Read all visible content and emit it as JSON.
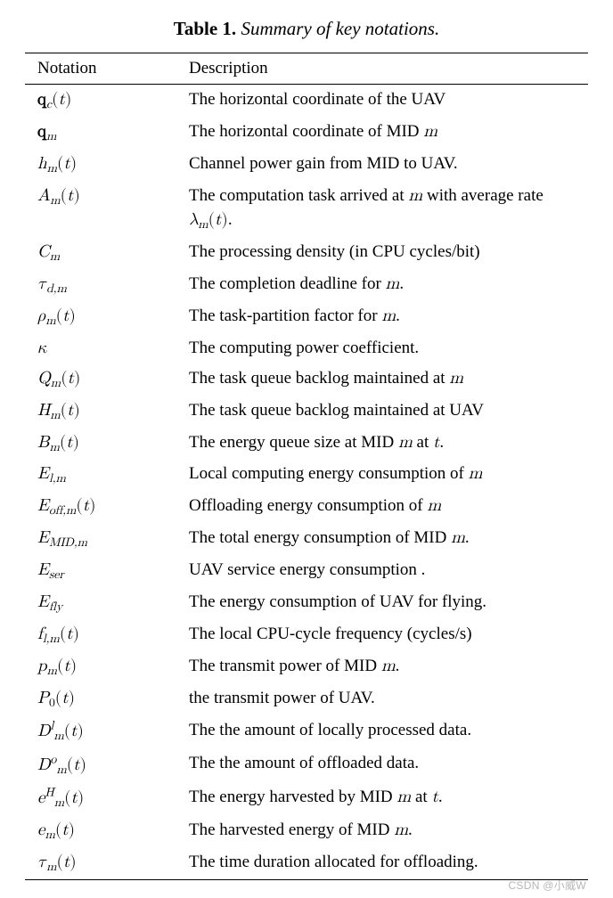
{
  "caption": {
    "label": "Table 1.",
    "title": "Summary of key notations."
  },
  "headers": {
    "notation": "Notation",
    "description": "Description"
  },
  "rows": [
    {
      "n": "<span class='bold-math'>q</span><sub>c</sub><span class='rm'>(</span>t<span class='rm'>)</span>",
      "d": "The horizontal coordinate of the UAV"
    },
    {
      "n": "<span class='bold-math'>q</span><sub>m</sub>",
      "d": "The horizontal coordinate of MID <span class='math'>m</span>"
    },
    {
      "n": "h<sub>m</sub><span class='rm'>(</span>t<span class='rm'>)</span>",
      "d": "Channel power gain from MID to UAV."
    },
    {
      "n": "A<sub>m</sub><span class='rm'>(</span>t<span class='rm'>)</span>",
      "d": "The computation task arrived at <span class='math'>m</span> with average rate <span class='math'>λ<sub>m</sub><span class='rm'>(</span>t<span class='rm'>)</span></span>."
    },
    {
      "n": "C<sub>m</sub>",
      "d": "The processing density (in CPU cycles/bit)"
    },
    {
      "n": "τ<sub>d,m</sub>",
      "d": "The completion deadline for <span class='math'>m</span>."
    },
    {
      "n": "ρ<sub>m</sub><span class='rm'>(</span>t<span class='rm'>)</span>",
      "d": "The task-partition factor for <span class='math'>m</span>."
    },
    {
      "n": "κ",
      "d": "The computing power coefficient."
    },
    {
      "n": "Q<sub>m</sub><span class='rm'>(</span>t<span class='rm'>)</span>",
      "d": "The task queue backlog maintained at <span class='math'>m</span>"
    },
    {
      "n": "H<sub>m</sub><span class='rm'>(</span>t<span class='rm'>)</span>",
      "d": "The task queue backlog maintained at UAV"
    },
    {
      "n": "B<sub>m</sub><span class='rm'>(</span>t<span class='rm'>)</span>",
      "d": "The energy queue size at MID <span class='math'>m</span> at <span class='math'>t</span>."
    },
    {
      "n": "E<sub>l,m</sub>",
      "d": "Local computing energy consumption of <span class='math'>m</span>"
    },
    {
      "n": "E<sub>off,m</sub><span class='rm'>(</span>t<span class='rm'>)</span>",
      "d": "Offloading energy consumption of <span class='math'>m</span>"
    },
    {
      "n": "E<sub>MID,m</sub>",
      "d": "The total energy consumption of MID <span class='math'>m</span>."
    },
    {
      "n": "E<sub>ser</sub>",
      "d": "UAV service energy consumption ."
    },
    {
      "n": "E<sub>fly</sub>",
      "d": "The energy consumption of UAV for flying."
    },
    {
      "n": "f<sub>l,m</sub><span class='rm'>(</span>t<span class='rm'>)</span>",
      "d": "The local CPU-cycle frequency (cycles/s)"
    },
    {
      "n": "p<sub>m</sub><span class='rm'>(</span>t<span class='rm'>)</span>",
      "d": "The transmit power of MID <span class='math'>m</span>."
    },
    {
      "n": "P<sub><span class='rm'>0</span></sub><span class='rm'>(</span>t<span class='rm'>)</span>",
      "d": "the transmit power of UAV."
    },
    {
      "n": "D<sup>l</sup><sub>m</sub><span class='rm'>(</span>t<span class='rm'>)</span>",
      "d": "The the amount of locally processed data."
    },
    {
      "n": "D<sup>o</sup><sub>m</sub><span class='rm'>(</span>t<span class='rm'>)</span>",
      "d": "The the amount of offloaded data."
    },
    {
      "n": "e<sup>H</sup><sub>m</sub><span class='rm'>(</span>t<span class='rm'>)</span>",
      "d": "The energy harvested by MID <span class='math'>m</span> at <span class='math'>t</span>."
    },
    {
      "n": "e<sub>m</sub><span class='rm'>(</span>t<span class='rm'>)</span>",
      "d": "The harvested energy of MID <span class='math'>m</span>."
    },
    {
      "n": "τ<sub>m</sub><span class='rm'>(</span>t<span class='rm'>)</span>",
      "d": "The time duration allocated for offloading."
    }
  ],
  "watermark": "CSDN @小威W"
}
